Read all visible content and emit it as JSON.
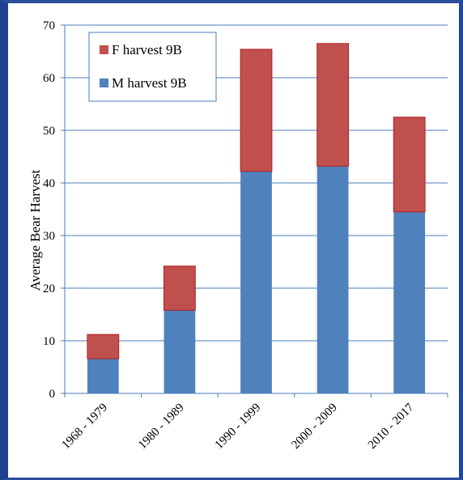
{
  "chart_data": {
    "type": "bar",
    "stacked": true,
    "title": "",
    "xlabel": "",
    "ylabel": "Average Bear Harvest",
    "categories": [
      "1968 - 1979",
      "1980 - 1989",
      "1990 - 1999",
      "2000 - 2009",
      "2010 - 2017"
    ],
    "ylim": [
      0,
      70
    ],
    "yticks": [
      0,
      10,
      20,
      30,
      40,
      50,
      60,
      70
    ],
    "grid": true,
    "legend_position": "top-left",
    "series": [
      {
        "name": "M harvest 9B",
        "values": [
          6.6,
          15.8,
          42.2,
          43.2,
          34.5
        ],
        "color": "#4f81bd"
      },
      {
        "name": "F harvest 9B",
        "values": [
          4.6,
          8.4,
          23.2,
          23.3,
          18.0
        ],
        "color": "#c0504d"
      }
    ],
    "legend_order": [
      "F harvest 9B",
      "M harvest 9B"
    ]
  }
}
